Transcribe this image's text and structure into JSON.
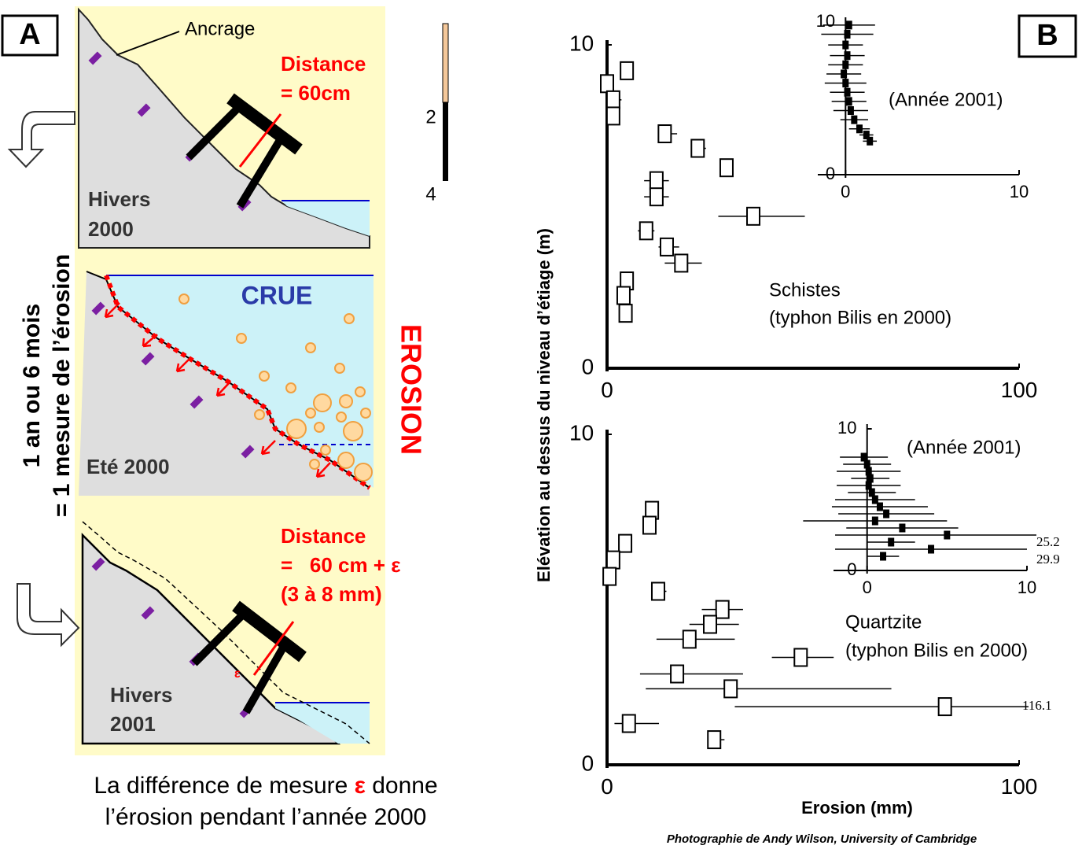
{
  "panel_a": {
    "label": "A",
    "top": {
      "anchor_label": "Ancrage",
      "distance_title": "Distance",
      "distance_value": "= 60cm",
      "scale_labels": [
        "2",
        "4"
      ],
      "season": [
        "Hivers",
        "2000"
      ]
    },
    "middle": {
      "flood": "CRUE",
      "season": "Eté 2000",
      "process": "EROSION"
    },
    "bottom": {
      "distance_title": "Distance",
      "distance_value": "=   60 cm + ε",
      "distance_range": "(3 à 8 mm)",
      "epsilon": "ε",
      "season": [
        "Hivers",
        "2001"
      ]
    },
    "side_text": [
      "1 an ou 6 mois",
      "= 1 mesure de l’érosion"
    ],
    "caption": {
      "line1_start": "La différence de mesure ",
      "epsilon": "ε",
      "line1_end": " donne",
      "line2": "l’érosion pendant l’année 2000"
    }
  },
  "figure_b": {
    "label": "B",
    "ylabel": "Elévation au dessus du niveau d’étiage (m)",
    "xlabel": "Erosion (mm)",
    "credit": "Photographie de Andy Wilson, University of Cambridge"
  },
  "chart_data": [
    {
      "type": "scatter",
      "marker": "open-square",
      "color": "#000000",
      "annotations": [
        "Schistes",
        "(typhon Bilis en 2000)"
      ],
      "x": [
        4.8,
        0,
        1.5,
        1.5,
        14,
        22,
        29,
        12,
        12,
        35.5,
        9.5,
        14.5,
        18,
        4.8,
        4,
        4.5
      ],
      "y": [
        9.2,
        8.8,
        8.3,
        7.8,
        7.25,
        6.8,
        6.2,
        5.8,
        5.3,
        4.7,
        4.25,
        3.75,
        3.25,
        2.7,
        2.25,
        1.7
      ],
      "xerr": [
        [
          0,
          0
        ],
        [
          1,
          1.5
        ],
        [
          1.5,
          2
        ],
        [
          0,
          0
        ],
        [
          1,
          3
        ],
        [
          1,
          2
        ],
        [
          0.5,
          1
        ],
        [
          3,
          3
        ],
        [
          3,
          3
        ],
        [
          8.5,
          12.5
        ],
        [
          2,
          2
        ],
        [
          2,
          3
        ],
        [
          4,
          5
        ],
        [
          0,
          0
        ],
        [
          0,
          0
        ],
        [
          0,
          0
        ]
      ],
      "xlim": [
        0,
        100
      ],
      "ylim": [
        0,
        10
      ],
      "xticks": [
        0,
        100
      ],
      "yticks": [
        0,
        10
      ]
    },
    {
      "type": "scatter",
      "marker": "filled-square",
      "color": "#000000",
      "title": "(Année 2001)",
      "x": [
        0.2,
        0.1,
        0,
        0.1,
        0,
        -0.1,
        0,
        0.1,
        0.2,
        0.3,
        0.5,
        0.8,
        1.2,
        1.4
      ],
      "y": [
        9.8,
        9.2,
        8.5,
        7.8,
        7.2,
        6.6,
        6,
        5.4,
        4.8,
        4.2,
        3.6,
        3,
        2.6,
        2.2
      ],
      "xerr": [
        [
          1.5,
          1.5
        ],
        [
          1.5,
          1.5
        ],
        [
          1,
          1
        ],
        [
          1,
          1
        ],
        [
          1,
          1
        ],
        [
          1,
          1
        ],
        [
          1.2,
          1.2
        ],
        [
          1,
          1
        ],
        [
          1,
          1
        ],
        [
          1,
          1
        ],
        [
          0.8,
          0.8
        ],
        [
          0.6,
          0.6
        ],
        [
          0.4,
          0.4
        ],
        [
          0.4,
          0.4
        ]
      ],
      "xlim": [
        -1.6,
        10
      ],
      "ylim": [
        0,
        10
      ],
      "xticks": [
        0,
        10
      ],
      "yticks": [
        0,
        10
      ]
    },
    {
      "type": "scatter",
      "marker": "open-square",
      "color": "#000000",
      "annotations": [
        "Quartzite",
        "(typhon Bilis en 2000)",
        "116.1"
      ],
      "x": [
        10.9,
        10.3,
        4.4,
        1.5,
        0.6,
        12.4,
        28,
        25,
        20,
        47,
        17,
        30,
        82,
        5.3,
        26
      ],
      "y": [
        7.7,
        7.25,
        6.7,
        6.2,
        5.7,
        5.25,
        4.7,
        4.25,
        3.8,
        3.25,
        2.75,
        2.3,
        1.76,
        1.25,
        0.76
      ],
      "xerr": [
        [
          0,
          0
        ],
        [
          0,
          0
        ],
        [
          0,
          0
        ],
        [
          0,
          0
        ],
        [
          0,
          0
        ],
        [
          1,
          2
        ],
        [
          5,
          5
        ],
        [
          5,
          7
        ],
        [
          8,
          11
        ],
        [
          7,
          8
        ],
        [
          9,
          16
        ],
        [
          20.6,
          39
        ],
        [
          51,
          34.1
        ],
        [
          3.5,
          7.3
        ],
        [
          0,
          2.5
        ]
      ],
      "xlim": [
        0,
        100
      ],
      "ylim": [
        0,
        10
      ],
      "xticks": [
        0,
        100
      ],
      "yticks": [
        0,
        10
      ]
    },
    {
      "type": "scatter",
      "marker": "filled-square",
      "color": "#000000",
      "title": "(Année 2001)",
      "annotations": [
        "25.2",
        "29.9"
      ],
      "x": [
        -0.2,
        0,
        0.1,
        0.2,
        0.1,
        0.3,
        0.5,
        0.8,
        1.2,
        0.5,
        2.2,
        5,
        1.5,
        4,
        1
      ],
      "y": [
        8,
        7.5,
        7,
        6.5,
        6,
        5.5,
        5,
        4.5,
        4,
        3.5,
        3,
        2.5,
        2,
        1.5,
        1
      ],
      "xerr": [
        [
          1.5,
          1.5
        ],
        [
          1.5,
          1.5
        ],
        [
          2,
          2
        ],
        [
          1.2,
          1.2
        ],
        [
          2,
          2
        ],
        [
          1.5,
          1.5
        ],
        [
          2.5,
          2.5
        ],
        [
          3,
          3
        ],
        [
          3,
          3
        ],
        [
          4.5,
          4.5
        ],
        [
          3.5,
          3.5
        ],
        [
          7,
          7
        ],
        [
          1.5,
          1.5
        ],
        [
          6,
          6
        ],
        [
          1,
          1
        ]
      ],
      "xlim": [
        -2.1,
        10
      ],
      "ylim": [
        0,
        10
      ],
      "xticks": [
        0,
        10
      ],
      "yticks": [
        0,
        10
      ]
    }
  ]
}
